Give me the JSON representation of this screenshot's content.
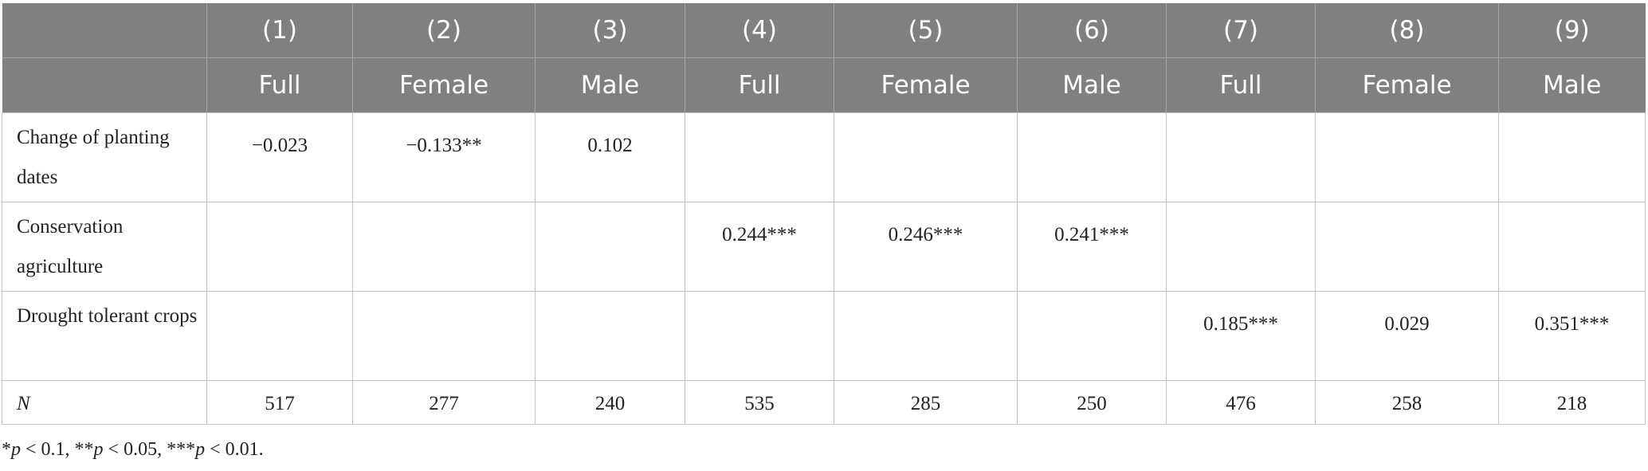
{
  "table": {
    "header": {
      "numbers": [
        "(1)",
        "(2)",
        "(3)",
        "(4)",
        "(5)",
        "(6)",
        "(7)",
        "(8)",
        "(9)"
      ],
      "groups": [
        "Full",
        "Female",
        "Male",
        "Full",
        "Female",
        "Male",
        "Full",
        "Female",
        "Male"
      ]
    },
    "rows": [
      {
        "label": "Change of planting dates",
        "cells": [
          "−0.023",
          "−0.133**",
          "0.102",
          null,
          null,
          null,
          null,
          null,
          null
        ]
      },
      {
        "label": "Conservation agriculture",
        "cells": [
          null,
          null,
          null,
          "0.244***",
          "0.246***",
          "0.241***",
          null,
          null,
          null
        ]
      },
      {
        "label": "Drought tolerant crops",
        "cells": [
          null,
          null,
          null,
          null,
          null,
          null,
          "0.185***",
          "0.029",
          "0.351***"
        ]
      },
      {
        "label": "N",
        "cells": [
          "517",
          "277",
          "240",
          "535",
          "285",
          "250",
          "476",
          "258",
          "218"
        ]
      }
    ]
  },
  "footnote": {
    "variable": "p",
    "entries": [
      {
        "stars": "*",
        "rest": " < 0.1, "
      },
      {
        "stars": "**",
        "rest": " < 0.05, "
      },
      {
        "stars": "***",
        "rest": " < 0.01."
      }
    ]
  }
}
